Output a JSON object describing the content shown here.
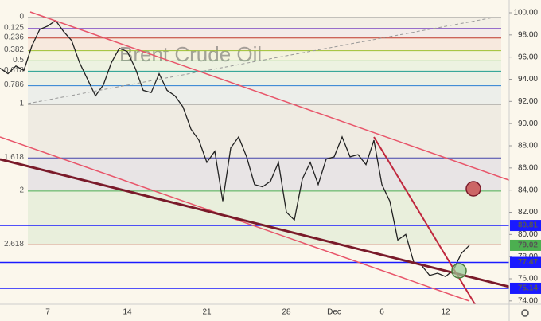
{
  "chart_data": {
    "type": "line",
    "watermark": "Brent Crude Oil",
    "color": "#222222",
    "categories": [
      null,
      null,
      null,
      null,
      null,
      null,
      "7",
      null,
      null,
      null,
      null,
      null,
      null,
      null,
      null,
      null,
      "14",
      null,
      null,
      null,
      null,
      null,
      null,
      null,
      null,
      null,
      "21",
      null,
      null,
      null,
      null,
      null,
      null,
      null,
      null,
      null,
      "28",
      null,
      null,
      null,
      null,
      null,
      "Dec",
      null,
      null,
      null,
      null,
      null,
      "6",
      null,
      null,
      null,
      null,
      null,
      null,
      null,
      "12",
      null,
      null,
      null
    ],
    "values": [
      95,
      94.5,
      95.2,
      94.8,
      97,
      98.5,
      98.8,
      99.3,
      98.3,
      97.5,
      95.5,
      94,
      92.5,
      93.5,
      95.5,
      96.8,
      96.5,
      95,
      93,
      92.8,
      94.5,
      93,
      92.5,
      91.5,
      89.5,
      88.5,
      86.5,
      87.5,
      83,
      87.8,
      88.8,
      87,
      84.5,
      84.3,
      84.8,
      86.5,
      82,
      81.3,
      85,
      86.5,
      84.5,
      86.8,
      87,
      88.8,
      87,
      87.2,
      86.3,
      88.5,
      84.5,
      83,
      79.5,
      80,
      77.5,
      77.2,
      76.3,
      76.5,
      76.2,
      76.8,
      78.3,
      79.02
    ],
    "ylim": [
      73.7,
      101.15
    ],
    "yticks": [
      {
        "value": 74,
        "label": "74.00"
      },
      {
        "value": 76,
        "label": "76.00"
      },
      {
        "value": 78,
        "label": "78.00"
      },
      {
        "value": 80,
        "label": "80.00"
      },
      {
        "value": 82,
        "label": "82.00"
      },
      {
        "value": 84,
        "label": "84.00"
      },
      {
        "value": 86,
        "label": "86.00"
      },
      {
        "value": 88,
        "label": "88.00"
      },
      {
        "value": 90,
        "label": "90.00"
      },
      {
        "value": 92,
        "label": "92.00"
      },
      {
        "value": 94,
        "label": "94.00"
      },
      {
        "value": 96,
        "label": "96.00"
      },
      {
        "value": 98,
        "label": "98.00"
      },
      {
        "value": 100,
        "label": "100.00"
      }
    ],
    "fib_levels": [
      {
        "level": "0",
        "price": 99.57,
        "color": "#888888"
      },
      {
        "level": "0.125",
        "price": 98.59,
        "color": "#8a5cc7"
      },
      {
        "level": "0.236",
        "price": 97.72,
        "color": "#c0392b"
      },
      {
        "level": "0.382",
        "price": 96.58,
        "color": "#9cc130"
      },
      {
        "level": "0.5",
        "price": 95.66,
        "color": "#3fb34f"
      },
      {
        "level": "0.618",
        "price": 94.73,
        "color": "#1f9d8f"
      },
      {
        "level": "0.786",
        "price": 93.42,
        "color": "#2a7fd4"
      },
      {
        "level": "1",
        "price": 91.74,
        "color": "#888888"
      },
      {
        "level": "1.618",
        "price": 86.9,
        "color": "#4444aa"
      },
      {
        "level": "2",
        "price": 83.91,
        "color": "#4caf50"
      },
      {
        "level": "2.618",
        "price": 79.07,
        "color": "#d9534f"
      }
    ],
    "price_lines": [
      {
        "value": 80.81,
        "color": "#1a1aff"
      },
      {
        "value": 77.47,
        "color": "#1a1aff"
      },
      {
        "value": 75.14,
        "color": "#1a1aff"
      }
    ],
    "last_color": "#4caf50"
  }
}
